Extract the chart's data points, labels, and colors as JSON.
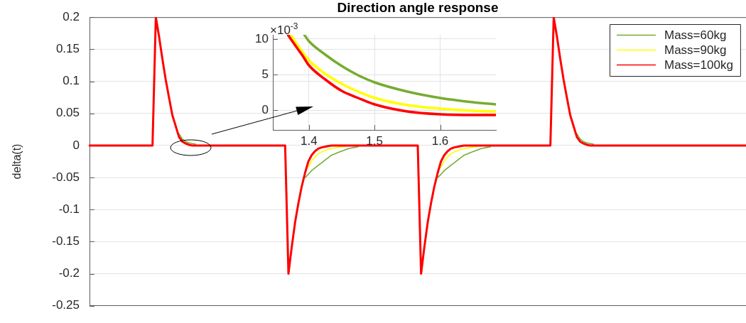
{
  "chart_data": [
    {
      "type": "line",
      "title": "Direction angle response",
      "ylabel": "delta(t)",
      "categories": [
        null,
        null,
        null,
        null,
        null,
        null,
        null,
        null,
        null,
        null,
        null,
        null,
        null,
        null,
        null,
        null,
        null,
        null,
        null,
        null,
        null,
        null,
        null,
        null,
        null,
        null,
        null,
        null,
        null,
        null,
        null,
        null,
        null,
        null,
        null,
        null,
        null,
        null,
        null,
        null,
        null,
        null,
        null,
        null,
        null,
        null,
        null,
        null,
        null,
        null,
        null,
        null,
        null,
        null,
        null,
        null,
        null,
        null,
        null,
        null,
        null,
        null,
        null,
        null,
        null,
        null,
        null,
        null,
        null,
        null,
        null,
        null,
        null,
        null,
        null,
        null,
        null,
        null,
        null,
        null,
        null,
        null,
        null,
        null,
        null,
        null,
        null,
        null,
        null,
        null,
        null,
        null,
        null,
        null,
        null,
        null,
        null,
        null,
        null,
        null,
        null,
        null,
        null,
        null,
        null,
        null,
        null,
        null,
        null,
        null,
        null,
        null,
        null,
        null,
        null,
        null,
        null,
        null,
        null,
        null,
        null,
        null,
        null,
        null,
        null,
        null,
        null,
        null,
        null,
        null,
        null,
        null,
        null,
        null,
        null,
        null,
        null,
        null,
        null,
        null,
        null,
        null,
        null,
        null,
        null,
        null,
        null,
        null,
        null,
        null,
        null,
        null,
        null,
        null,
        null,
        null,
        null,
        null,
        null,
        null,
        null,
        null,
        null,
        null,
        null,
        null,
        null,
        null,
        null,
        null,
        null,
        null,
        null,
        null,
        null,
        null,
        null,
        null,
        null,
        null,
        null,
        null,
        null,
        null,
        null,
        null,
        null,
        null,
        null,
        null,
        null,
        null,
        null,
        null,
        null,
        null,
        null,
        null,
        null
      ],
      "ylim": [
        -0.25,
        0.2
      ],
      "yticks": [
        -0.25,
        -0.2,
        -0.15,
        -0.1,
        -0.05,
        0,
        0.05,
        0.1,
        0.15,
        0.2
      ],
      "grid": "y",
      "legend": "top right",
      "tick_labels": "y",
      "series": [
        {
          "name": "Mass=60kg",
          "color": "#77ac30",
          "values": [
            null,
            null,
            null,
            null,
            null,
            null,
            null,
            null,
            null,
            null,
            null,
            null,
            null,
            null,
            null,
            null,
            null,
            null,
            null,
            null,
            null,
            null,
            null,
            null,
            null,
            null,
            null,
            0.018,
            0.01,
            0.006,
            0.004,
            0.003,
            0.002,
            null,
            null,
            null,
            null,
            null,
            null,
            null,
            null,
            null,
            null,
            null,
            null,
            null,
            null,
            null,
            null,
            null,
            null,
            null,
            null,
            null,
            null,
            null,
            null,
            null,
            null,
            null,
            null,
            null,
            null,
            null,
            null,
            -0.05,
            -0.045,
            -0.039,
            -0.035,
            -0.031,
            -0.027,
            -0.023,
            -0.019,
            -0.015,
            -0.013,
            -0.011,
            -0.009,
            -0.007,
            -0.005,
            -0.004,
            -0.003,
            -0.002,
            null,
            null,
            null,
            null,
            null,
            null,
            null,
            null,
            null,
            null,
            null,
            null,
            null,
            null,
            null,
            null,
            null,
            null,
            null,
            null,
            null,
            null,
            null,
            -0.05,
            -0.045,
            -0.039,
            -0.035,
            -0.031,
            -0.027,
            -0.023,
            -0.019,
            -0.015,
            -0.013,
            -0.011,
            -0.009,
            -0.007,
            -0.005,
            -0.004,
            -0.003,
            -0.002,
            null,
            null,
            null,
            null,
            null,
            null,
            null,
            null,
            null,
            null,
            null,
            null,
            null,
            null,
            null,
            null,
            null,
            null,
            null,
            null,
            null,
            null,
            null,
            null,
            null,
            0.018,
            0.01,
            0.006,
            0.004,
            0.003,
            0.002,
            null,
            null,
            null,
            null,
            null,
            null,
            null,
            null,
            null,
            null,
            null,
            null,
            null,
            null,
            null,
            null,
            null,
            null,
            null,
            null,
            null,
            null,
            null,
            null,
            null,
            null,
            null,
            null,
            null,
            null,
            null,
            null,
            null,
            null,
            null,
            null,
            null,
            null,
            null,
            null,
            null,
            null,
            null,
            null,
            null,
            null
          ]
        },
        {
          "name": "Mass=90kg",
          "color": "#ffff00",
          "values": [
            null,
            null,
            null,
            null,
            null,
            null,
            null,
            null,
            null,
            null,
            null,
            null,
            null,
            null,
            null,
            null,
            null,
            null,
            null,
            null,
            null,
            null,
            null,
            null,
            null,
            null,
            null,
            null,
            null,
            null,
            null,
            null,
            null,
            null,
            null,
            null,
            null,
            null,
            null,
            null,
            null,
            null,
            null,
            null,
            null,
            null,
            null,
            null,
            null,
            null,
            null,
            null,
            null,
            null,
            null,
            null,
            null,
            null,
            null,
            null,
            null,
            null,
            null,
            null,
            null,
            null,
            -0.034,
            -0.024,
            -0.018,
            -0.013,
            -0.01,
            -0.008,
            -0.006,
            -0.005,
            -0.004,
            -0.003,
            -0.002,
            -0.002,
            null,
            null,
            null,
            null,
            null,
            null,
            null,
            null,
            null,
            null,
            null,
            null,
            null,
            null,
            null,
            null,
            null,
            null,
            null,
            null,
            null,
            null,
            null,
            null,
            null,
            null,
            null,
            null,
            -0.034,
            -0.024,
            -0.018,
            -0.013,
            -0.01,
            -0.008,
            -0.006,
            -0.005,
            -0.004,
            -0.003,
            -0.002,
            -0.002,
            null,
            null,
            null,
            null,
            null,
            null,
            null,
            null,
            null,
            null,
            null,
            null,
            null,
            null,
            null,
            null,
            null,
            null,
            null,
            null,
            null,
            null,
            null,
            null,
            null,
            null,
            null,
            null,
            null,
            null,
            null,
            null,
            null,
            null,
            null,
            null,
            null,
            null,
            null,
            null,
            null,
            null,
            null,
            null,
            null,
            null,
            null,
            null,
            null,
            null,
            null,
            null,
            null,
            null,
            null,
            null,
            null,
            null,
            null,
            null,
            null,
            null,
            null,
            null,
            null,
            null,
            null,
            null,
            null,
            null,
            null,
            null,
            null,
            null,
            null,
            null,
            null,
            null,
            null,
            null,
            null
          ]
        },
        {
          "name": "Mass=100kg",
          "color": "#ff0000",
          "values": [
            0,
            0,
            0,
            0,
            0,
            0,
            0,
            0,
            0,
            0,
            0,
            0,
            0,
            0,
            0,
            0,
            0,
            0,
            0,
            0,
            0.2,
            0.169,
            0.134,
            0.102,
            0.074,
            0.047,
            0.03,
            0.013,
            0.006,
            0.003,
            0.001,
            0,
            0,
            0,
            0,
            0,
            0,
            0,
            0,
            0,
            0,
            0,
            0,
            0,
            0,
            0,
            0,
            0,
            0,
            0,
            0,
            0,
            0,
            0,
            0,
            0,
            0,
            0,
            0,
            0,
            -0.2,
            -0.158,
            -0.12,
            -0.09,
            -0.064,
            -0.043,
            -0.025,
            -0.015,
            -0.009,
            -0.005,
            -0.003,
            -0.002,
            -0.001,
            0,
            0,
            0,
            0,
            0,
            0,
            0,
            0,
            0,
            0,
            0,
            0,
            0,
            0,
            0,
            0,
            0,
            0,
            0,
            0,
            0,
            0,
            0,
            0,
            0,
            0,
            0,
            -0.2,
            -0.158,
            -0.12,
            -0.09,
            -0.064,
            -0.043,
            -0.025,
            -0.015,
            -0.009,
            -0.005,
            -0.003,
            -0.002,
            -0.001,
            0,
            0,
            0,
            0,
            0,
            0,
            0,
            0,
            0,
            0,
            0,
            0,
            0,
            0,
            0,
            0,
            0,
            0,
            0,
            0,
            0,
            0,
            0,
            0,
            0,
            0,
            0,
            0.2,
            0.169,
            0.134,
            0.102,
            0.074,
            0.047,
            0.03,
            0.013,
            0.006,
            0.003,
            0.001,
            0,
            0,
            0,
            0,
            0,
            0,
            0,
            0,
            0,
            0,
            0,
            0,
            0,
            0,
            0,
            0,
            0,
            0,
            0,
            0,
            0,
            0,
            0,
            0,
            0,
            0,
            0,
            0,
            0,
            0,
            0,
            0,
            0,
            0,
            0,
            0,
            0,
            0,
            0,
            0,
            0,
            0,
            0,
            0,
            0,
            0,
            0,
            0
          ]
        }
      ]
    },
    {
      "type": "line",
      "xlim": [
        1.345,
        1.685
      ],
      "ylim": [
        -2.8,
        10.6
      ],
      "xticks": [
        1.4,
        1.5,
        1.6
      ],
      "yticks": [
        0,
        5,
        10
      ],
      "grid": true,
      "annotations": [
        "×10$^{-3}$"
      ],
      "series": [
        {
          "color": "#77ac30",
          "x": [
            1.393,
            1.4,
            1.425,
            1.45,
            1.475,
            1.5,
            1.55,
            1.6,
            1.65,
            1.685
          ],
          "values": [
            10.6,
            9.7,
            7.8,
            6.2,
            4.9,
            3.9,
            2.6,
            1.7,
            1.1,
            0.8
          ]
        },
        {
          "color": "#ffff00",
          "x": [
            1.372,
            1.38,
            1.39,
            1.4,
            1.425,
            1.45,
            1.475,
            1.5,
            1.55,
            1.6,
            1.65,
            1.685
          ],
          "values": [
            10.6,
            9.5,
            8.2,
            7,
            5.1,
            3.7,
            2.6,
            1.7,
            0.7,
            0.2,
            -0.1,
            -0.2
          ]
        },
        {
          "color": "#ff0000",
          "x": [
            1.368,
            1.38,
            1.39,
            1.4,
            1.425,
            1.45,
            1.475,
            1.5,
            1.55,
            1.6,
            1.65,
            1.685
          ],
          "values": [
            10.6,
            9,
            7.7,
            6.3,
            4.3,
            2.7,
            1.7,
            0.8,
            -0.2,
            -0.6,
            -0.7,
            -0.7
          ]
        }
      ]
    }
  ]
}
